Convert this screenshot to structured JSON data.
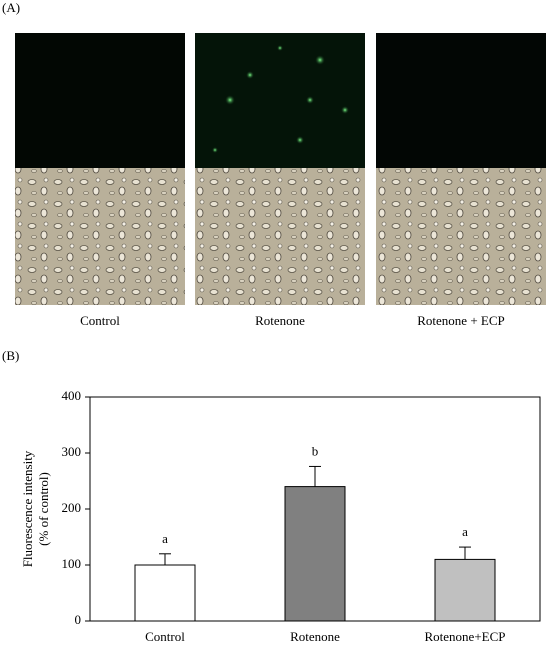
{
  "panel_a": {
    "label": "(A)",
    "captions": [
      "Control",
      "Rotenone",
      "Rotenone + ECP"
    ]
  },
  "panel_b_label": "(B)",
  "chart_data": {
    "type": "bar",
    "ylabel": [
      "Fluorescence intensity",
      "(% of control)"
    ],
    "categories": [
      "Control",
      "Rotenone",
      "Rotenone+ECP"
    ],
    "values": [
      100,
      240,
      110
    ],
    "errors": [
      20,
      36,
      22
    ],
    "annotations": [
      "a",
      "b",
      "a"
    ],
    "colors": [
      "#ffffff",
      "#808080",
      "#c0c0c0"
    ],
    "ylim": [
      0,
      400
    ],
    "yticks": [
      0,
      100,
      200,
      300,
      400
    ]
  }
}
